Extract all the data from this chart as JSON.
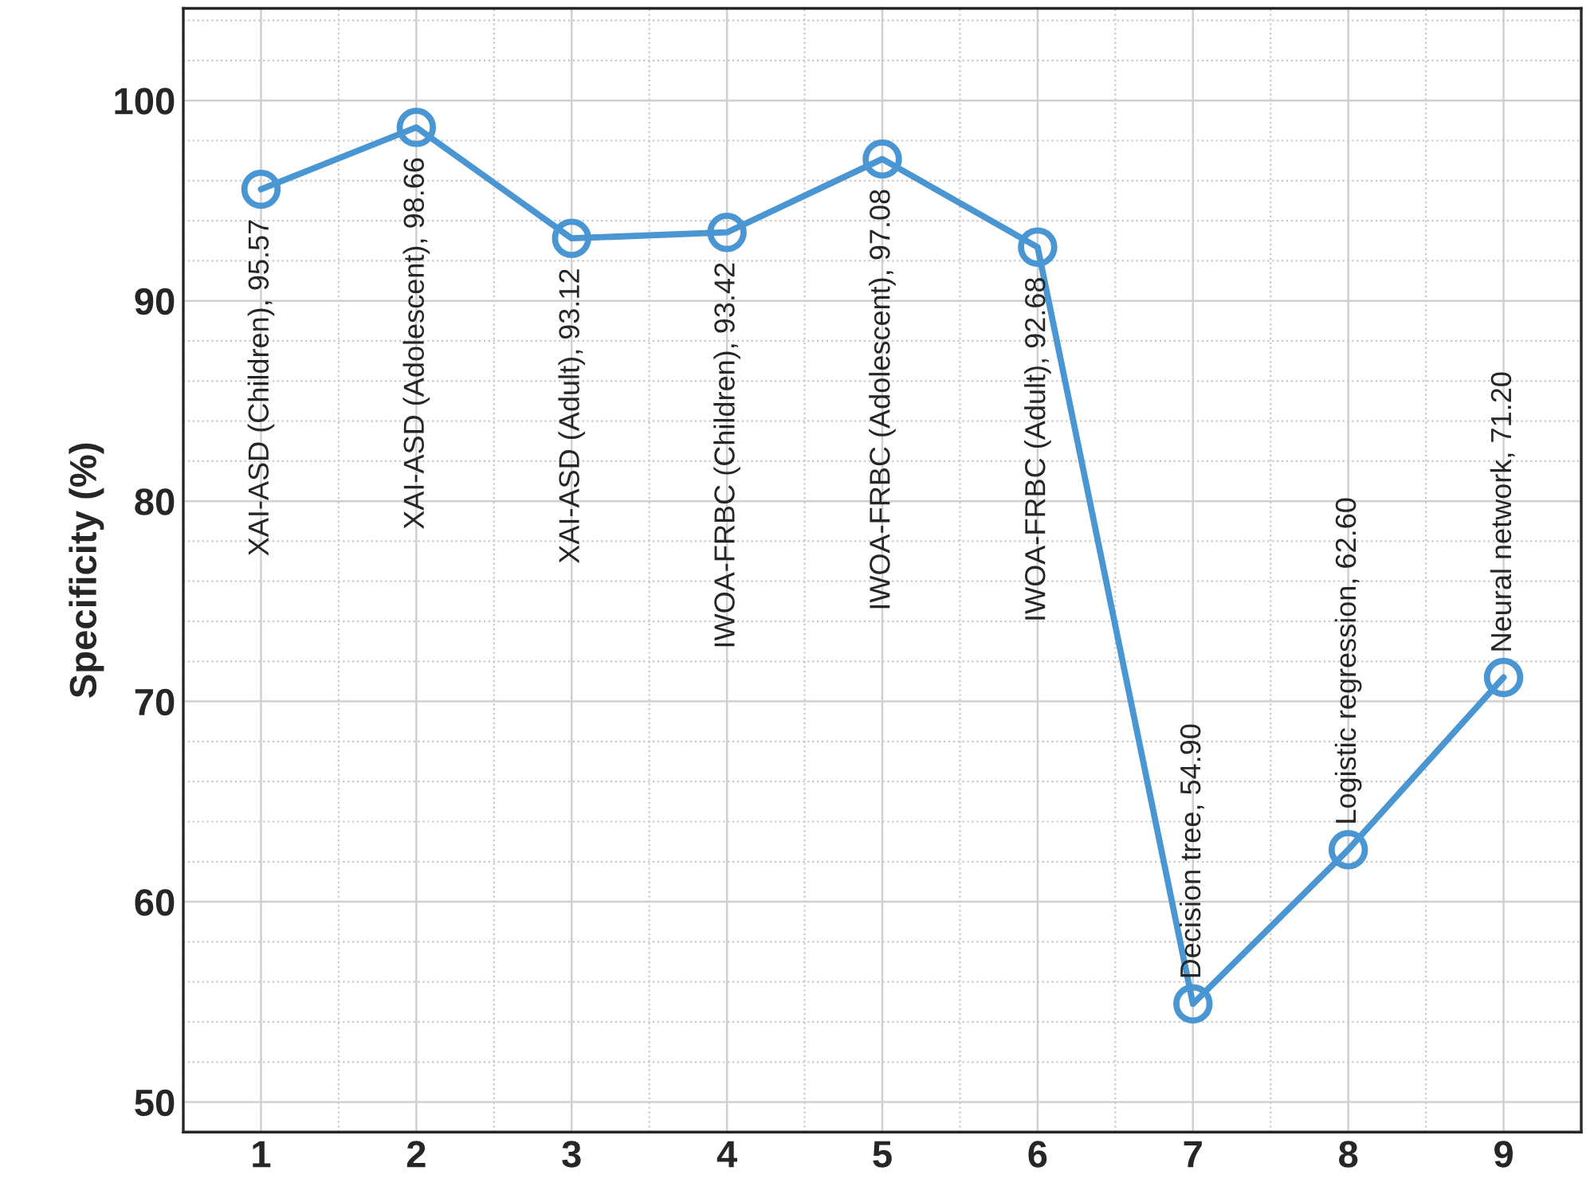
{
  "chart_data": {
    "type": "line",
    "ylabel": "Specificity (%)",
    "x": [
      1,
      2,
      3,
      4,
      5,
      6,
      7,
      8,
      9
    ],
    "series": [
      {
        "color": "#4a96d2",
        "values": [
          95.57,
          98.66,
          93.12,
          93.42,
          97.08,
          92.68,
          54.9,
          62.6,
          71.2
        ]
      }
    ],
    "xlim": [
      0.5,
      9.5
    ],
    "xticks": [
      1,
      2,
      3,
      4,
      5,
      6,
      7,
      8,
      9
    ],
    "ylim": [
      48.5,
      104.6
    ],
    "yticks": [
      50,
      60,
      70,
      80,
      90,
      100
    ],
    "grid": true,
    "marker": "circle",
    "line_style": "solid",
    "annotations": [
      {
        "text": "XAI-ASD (Children), 95.57",
        "x": 1,
        "y": 95.57
      },
      {
        "text": "XAI-ASD (Adolescent), 98.66",
        "x": 2,
        "y": 98.66
      },
      {
        "text": "XAI-ASD (Adult), 93.12",
        "x": 3,
        "y": 93.12
      },
      {
        "text": "IWOA-FRBC (Children), 93.42",
        "x": 4,
        "y": 93.42
      },
      {
        "text": "IWOA-FRBC (Adolescent), 97.08",
        "x": 5,
        "y": 97.08
      },
      {
        "text": "IWOA-FRBC (Adult), 92.68",
        "x": 6,
        "y": 92.68
      },
      {
        "text": "Decision tree, 54.90",
        "x": 7,
        "y": 54.9
      },
      {
        "text": "Logistic regression, 62.60",
        "x": 8,
        "y": 62.6
      },
      {
        "text": "Neural network, 71.20",
        "x": 9,
        "y": 71.2
      }
    ]
  }
}
